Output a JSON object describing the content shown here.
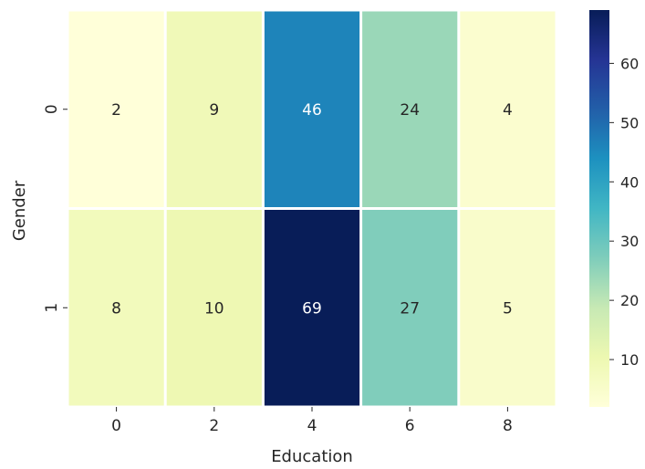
{
  "chart_data": {
    "type": "heatmap",
    "xlabel": "Education",
    "ylabel": "Gender",
    "x_categories": [
      "0",
      "2",
      "4",
      "6",
      "8"
    ],
    "y_categories": [
      "0",
      "1"
    ],
    "values": [
      [
        2,
        9,
        46,
        24,
        4
      ],
      [
        8,
        10,
        69,
        27,
        5
      ]
    ],
    "colormap": "YlGnBu",
    "color_range": [
      2,
      69
    ],
    "colorbar_ticks": [
      10,
      20,
      30,
      40,
      50,
      60
    ],
    "annotated": true,
    "grid": false
  }
}
